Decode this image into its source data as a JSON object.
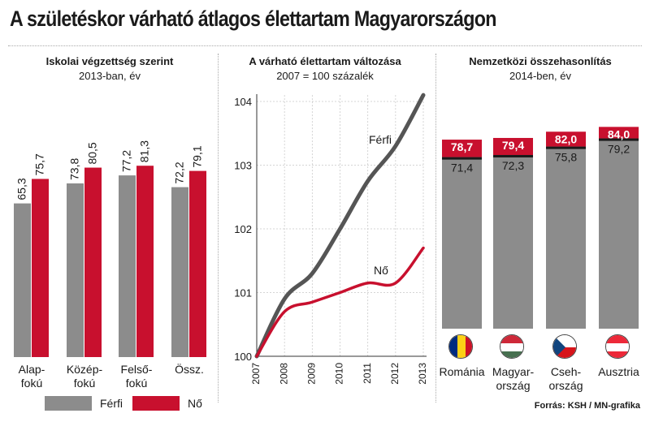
{
  "title": "A születéskor várható átlagos élettartam Magyarországon",
  "panels": {
    "education": {
      "title": "Iskolai végzettség szerint",
      "subtitle": "2013-ban, év"
    },
    "change": {
      "title": "A várható élettartam változása",
      "subtitle": "2007 = 100 százalék"
    },
    "international": {
      "title": "Nemzetközi összehasonlítás",
      "subtitle": "2014-ben, év"
    }
  },
  "legend": {
    "male": "Férfi",
    "female": "Nő"
  },
  "source": "Forrás: KSH / MN-grafika",
  "colors": {
    "male": "#8c8c8c",
    "female": "#c8102e",
    "line_male": "#555555",
    "line_female": "#c8102e"
  },
  "chart_data": [
    {
      "type": "bar",
      "title": "Iskolai végzettség szerint",
      "subtitle": "2013-ban, év",
      "categories": [
        "Alap-\nfokú",
        "Közép-\nfokú",
        "Felső-\nfokú",
        "Össz."
      ],
      "series": [
        {
          "name": "Férfi",
          "values": [
            65.3,
            73.8,
            77.2,
            72.2
          ],
          "labels": [
            "65,3",
            "73,8",
            "77,2",
            "72,2"
          ]
        },
        {
          "name": "Nő",
          "values": [
            75.7,
            80.5,
            81.3,
            79.1
          ],
          "labels": [
            "75,7",
            "80,5",
            "81,3",
            "79,1"
          ]
        }
      ]
    },
    {
      "type": "line",
      "title": "A várható élettartam változása",
      "subtitle": "2007 = 100 százalék",
      "x": [
        "2007",
        "2008",
        "2009",
        "2010",
        "2011",
        "2012",
        "2013"
      ],
      "yticks": [
        "100",
        "101",
        "102",
        "103",
        "104"
      ],
      "ylim": [
        100,
        104.1
      ],
      "series": [
        {
          "name": "Férfi",
          "values": [
            100,
            100.9,
            101.3,
            102.0,
            102.75,
            103.3,
            104.1
          ]
        },
        {
          "name": "Nő",
          "values": [
            100,
            100.7,
            100.85,
            101.0,
            101.15,
            101.15,
            101.7
          ]
        }
      ]
    },
    {
      "type": "bar",
      "title": "Nemzetközi összehasonlítás",
      "subtitle": "2014-ben, év",
      "categories": [
        "Románia",
        "Magyar-\nország",
        "Cseh-\nország",
        "Ausztria"
      ],
      "flags": [
        "romania-flag",
        "hungary-flag",
        "czech-flag",
        "austria-flag"
      ],
      "series": [
        {
          "name": "Férfi",
          "values": [
            71.4,
            72.3,
            75.8,
            79.2
          ],
          "labels": [
            "71,4",
            "72,3",
            "75,8",
            "79,2"
          ]
        },
        {
          "name": "Nő",
          "values": [
            78.7,
            79.4,
            82.0,
            84.0
          ],
          "labels": [
            "78,7",
            "79,4",
            "82,0",
            "84,0"
          ]
        }
      ]
    }
  ]
}
